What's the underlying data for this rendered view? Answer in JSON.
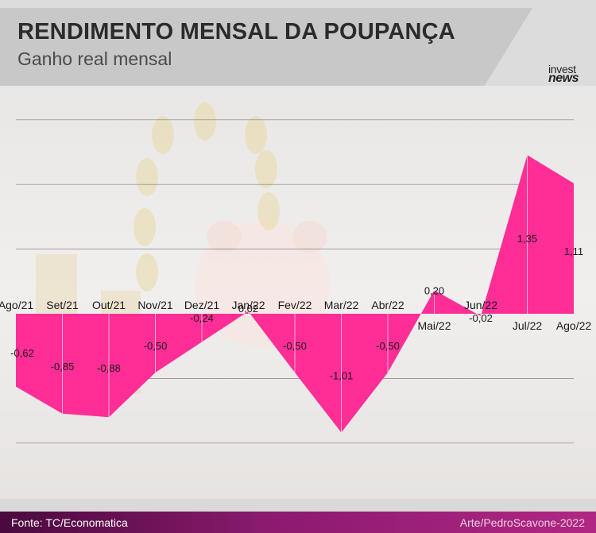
{
  "header": {
    "title": "RENDIMENTO MENSAL DA POUPANÇA",
    "subtitle": "Ganho real mensal",
    "logo_line1": "invest",
    "logo_line2": "news"
  },
  "footer": {
    "source": "Fonte: TC/Economatica",
    "credit": "Arte/PedroScavone-2022"
  },
  "colors": {
    "area_fill": "#ff2d96",
    "gridline": "#555555",
    "footer_start": "#4a0a3e",
    "footer_end": "#b02783"
  },
  "chart_data": {
    "type": "area",
    "title": "RENDIMENTO MENSAL DA POUPANÇA",
    "subtitle": "Ganho real mensal",
    "categories": [
      "Ago/21",
      "Set/21",
      "Out/21",
      "Nov/21",
      "Dez/21",
      "Jan/22",
      "Fev/22",
      "Mar/22",
      "Abr/22",
      "Mai/22",
      "Jun/22",
      "Jul/22",
      "Ago/22"
    ],
    "values": [
      -0.62,
      -0.85,
      -0.88,
      -0.5,
      -0.24,
      0.02,
      -0.5,
      -1.01,
      -0.5,
      0.2,
      -0.02,
      1.35,
      1.11
    ],
    "value_labels": [
      "-0,62",
      "-0,85",
      "-0,88",
      "-0,50",
      "-0,24",
      "0,02",
      "-0,50",
      "-1,01",
      "-0,50",
      "0,20",
      "-0,02",
      "1,35",
      "1,11"
    ],
    "ylim": [
      -1.01,
      1.35
    ],
    "grid": true,
    "legend": "none"
  }
}
